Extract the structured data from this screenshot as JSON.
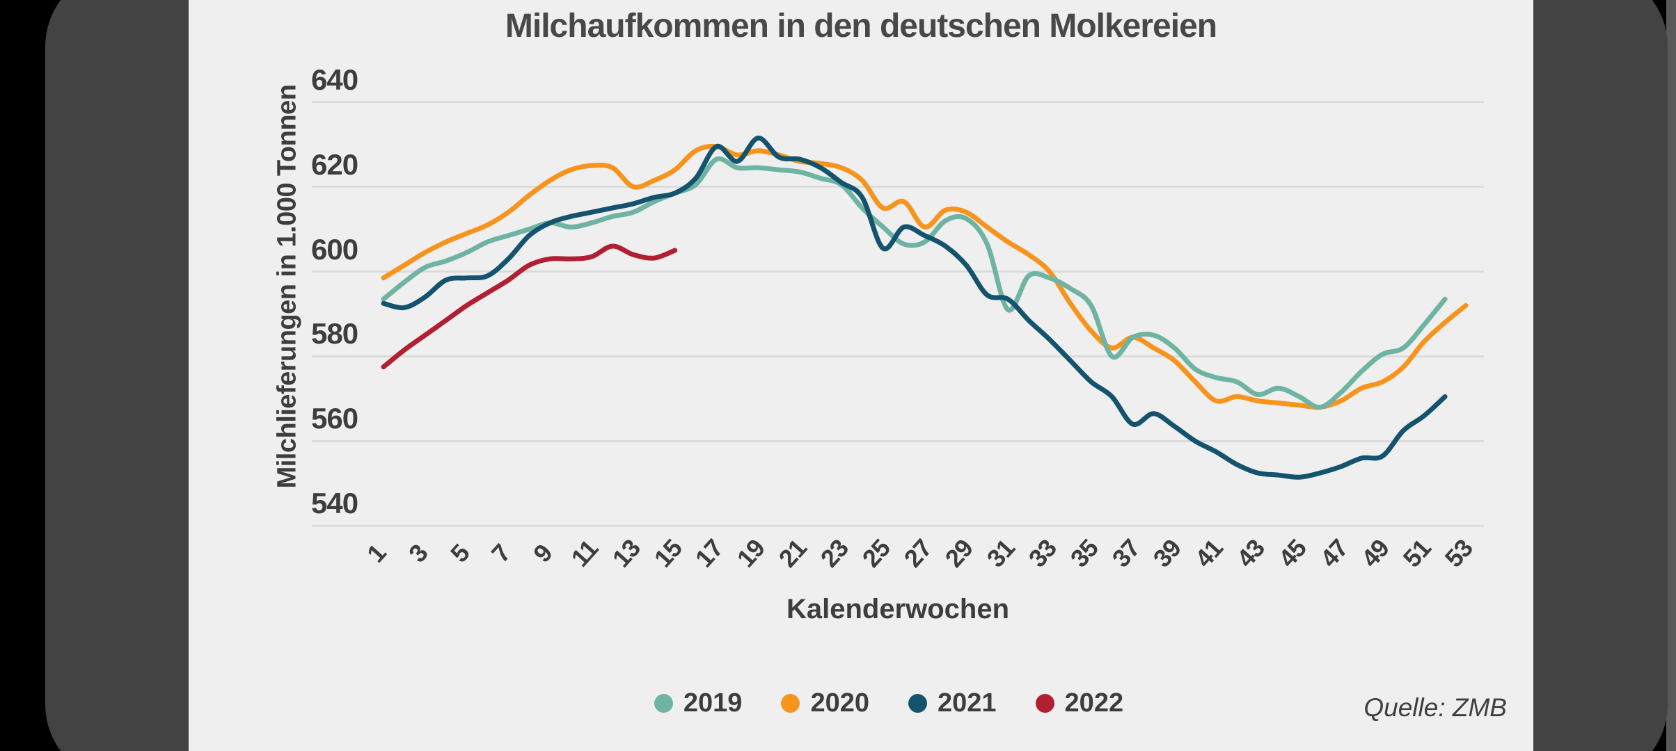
{
  "chart": {
    "title": "Milchaufkommen in den deutschen Molkereien",
    "source": "Quelle: ZMB",
    "y_axis": {
      "title": "Milchlieferungen in 1.000 Tonnen",
      "ticks": [
        640,
        620,
        600,
        580,
        560,
        540
      ]
    },
    "x_axis": {
      "title": "Kalenderwochen",
      "tick_labels": [
        1,
        3,
        5,
        7,
        9,
        11,
        13,
        15,
        17,
        19,
        21,
        23,
        25,
        27,
        29,
        31,
        33,
        35,
        37,
        39,
        41,
        43,
        45,
        47,
        49,
        51,
        53
      ]
    },
    "legend": [
      {
        "label": "2019",
        "color": "#6FB4A2"
      },
      {
        "label": "2020",
        "color": "#F6941E"
      },
      {
        "label": "2021",
        "color": "#14536E"
      },
      {
        "label": "2022",
        "color": "#B01F32"
      }
    ],
    "colors": {
      "background_card": "#EFEFEF",
      "frame": "#434343",
      "grid": "#D9D9D9",
      "text": "#3D3D3D",
      "title": "#484848"
    }
  },
  "chart_data": {
    "type": "line",
    "title": "Milchaufkommen in den deutschen Molkereien",
    "xlabel": "Kalenderwochen",
    "ylabel": "Milchlieferungen in 1.000 Tonnen",
    "ylim": [
      540,
      640
    ],
    "xlim": [
      1,
      53
    ],
    "grid": true,
    "legend_position": "bottom",
    "x": [
      1,
      2,
      3,
      4,
      5,
      6,
      7,
      8,
      9,
      10,
      11,
      12,
      13,
      14,
      15,
      16,
      17,
      18,
      19,
      20,
      21,
      22,
      23,
      24,
      25,
      26,
      27,
      28,
      29,
      30,
      31,
      32,
      33,
      34,
      35,
      36,
      37,
      38,
      39,
      40,
      41,
      42,
      43,
      44,
      45,
      46,
      47,
      48,
      49,
      50,
      51,
      52,
      53
    ],
    "series": [
      {
        "name": "2019",
        "color": "#6FB4A2",
        "start_week": 1,
        "values": [
          593.5,
          597.5,
          601,
          602.5,
          604.5,
          607,
          608.5,
          610,
          611.5,
          610.5,
          611.5,
          613,
          614,
          616.5,
          618.5,
          620.5,
          626.5,
          624.5,
          624.5,
          624,
          623.5,
          622,
          620.5,
          615,
          610.5,
          606.5,
          607,
          612,
          612.5,
          606.5,
          591,
          599,
          598.5,
          596,
          592,
          580,
          584.5,
          585,
          582,
          577,
          575,
          574,
          571,
          572.5,
          570.5,
          568,
          571.5,
          576.5,
          580.5,
          582,
          587.5,
          593.5
        ]
      },
      {
        "name": "2020",
        "color": "#F6941E",
        "start_week": 1,
        "values": [
          598.5,
          601.5,
          604.5,
          607,
          609,
          611,
          614,
          618,
          621.5,
          624,
          625,
          624.5,
          620,
          621.5,
          624,
          628.5,
          629.5,
          627.5,
          628.5,
          627.5,
          626,
          625.5,
          624.5,
          621.5,
          615,
          616.5,
          610.5,
          614.5,
          614,
          610.5,
          607,
          604,
          600,
          592.5,
          586,
          582,
          584.5,
          582,
          579,
          574,
          569.5,
          570.5,
          569.5,
          569,
          568.5,
          568,
          569.5,
          572.5,
          574,
          577.5,
          583.5,
          588,
          592
        ]
      },
      {
        "name": "2021",
        "color": "#14536E",
        "start_week": 1,
        "values": [
          592.5,
          591.5,
          594,
          598,
          598.5,
          599,
          603,
          608.5,
          611.5,
          613,
          614,
          615,
          616,
          617.5,
          618.5,
          622,
          629.5,
          626,
          631.5,
          627,
          626.5,
          624.5,
          621,
          617.5,
          605.5,
          610.5,
          608.5,
          606,
          601.5,
          594.5,
          593.5,
          588.5,
          584,
          579,
          574,
          570.5,
          564,
          566.5,
          563.5,
          560,
          557.5,
          554.5,
          552.5,
          552,
          551.5,
          552.5,
          554,
          556,
          556.5,
          562.5,
          566,
          570.5
        ]
      },
      {
        "name": "2022",
        "color": "#B01F32",
        "start_week": 1,
        "values": [
          577.5,
          581.5,
          585,
          588.5,
          592,
          595,
          598,
          601.5,
          603,
          603,
          603.5,
          606,
          604,
          603.2,
          605
        ]
      }
    ]
  }
}
